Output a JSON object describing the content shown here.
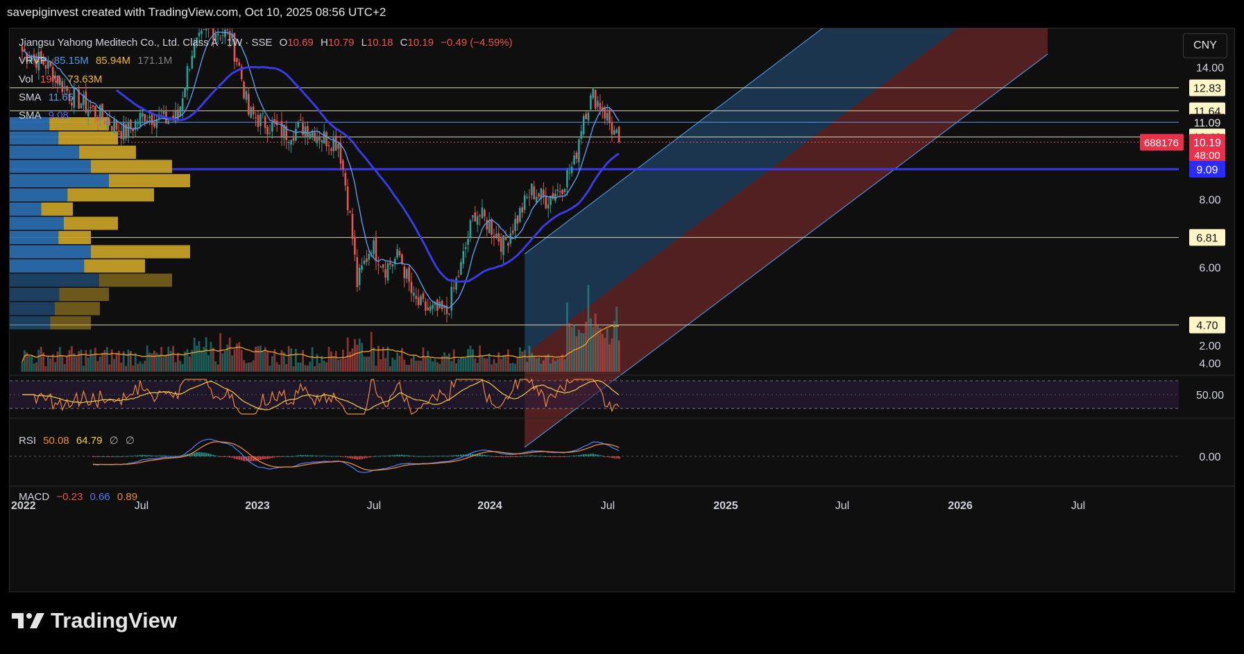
{
  "header": {
    "attribution": "savepiginvest created with TradingView.com, Oct 10, 2025 08:56 UTC+2"
  },
  "symbol": {
    "name": "Jiangsu Yahong Meditech Co., Ltd. Class A · 1W · SSE",
    "open_label": "O",
    "open": "10.69",
    "high_label": "H",
    "high": "10.79",
    "low_label": "L",
    "low": "10.18",
    "close_label": "C",
    "close": "10.19",
    "change": "−0.49 (−4.59%)"
  },
  "indicators": {
    "vrvp": {
      "label": "VRVP",
      "v1": "85.15M",
      "v2": "85.94M",
      "v3": "171.1M"
    },
    "vol": {
      "label": "Vol",
      "v1": "19M",
      "v2": "73.63M"
    },
    "sma1": {
      "label": "SMA",
      "value": "11.65"
    },
    "sma2": {
      "label": "SMA",
      "value": "9.08"
    },
    "rsi": {
      "label": "RSI",
      "v1": "50.08",
      "v2": "64.79",
      "v3": "∅",
      "v4": "∅"
    },
    "macd": {
      "label": "MACD",
      "v1": "−0.23",
      "v2": "0.66",
      "v3": "0.89"
    }
  },
  "currency_button": "CNY",
  "price_axis": {
    "ticks": [
      "14.00",
      "8.00",
      "6.00",
      "4.00",
      "2.00"
    ],
    "levels": [
      {
        "label": "12.83",
        "price": 12.83
      },
      {
        "label": "11.64",
        "price": 11.64
      },
      {
        "label": "11.09",
        "price": 11.09
      },
      {
        "label": "10.42",
        "price": 10.42
      },
      {
        "label": "6.81",
        "price": 6.81
      },
      {
        "label": "4.70",
        "price": 4.7
      }
    ],
    "current": {
      "symbol_code": "688176",
      "price": "10.19",
      "countdown": "48:00"
    },
    "sma_level": "9.09"
  },
  "rsi_axis": "50.00",
  "macd_axis": "0.00",
  "time_axis": [
    "2022",
    "Jul",
    "2023",
    "Jul",
    "2024",
    "Jul",
    "2025",
    "Jul",
    "2026",
    "Jul"
  ],
  "brand": "TradingView",
  "colors": {
    "up": "#26a69a",
    "down": "#ef5350",
    "sma_slow": "#3a3ae8",
    "sma_fast": "#5b9cf0",
    "vrvp_up": "#2a6db0",
    "vrvp_down": "#c9a227"
  },
  "chart_data": [
    {
      "type": "candlestick",
      "title": "Jiangsu Yahong Meditech Co., Ltd. Class A · 1W · SSE",
      "scale": "log",
      "ylim": [
        3.8,
        16.5
      ],
      "x_ticks": [
        "2022",
        "Jul",
        "2023",
        "Jul",
        "2024",
        "Jul",
        "2025",
        "Jul",
        "2026",
        "Jul"
      ],
      "close_path": [
        {
          "w": 0,
          "c": 15.0
        },
        {
          "w": 10,
          "c": 14.2
        },
        {
          "w": 20,
          "c": 12.5
        },
        {
          "w": 28,
          "c": 11.8
        },
        {
          "w": 36,
          "c": 11.2
        },
        {
          "w": 44,
          "c": 10.6
        },
        {
          "w": 52,
          "c": 11.5
        },
        {
          "w": 60,
          "c": 11.2
        },
        {
          "w": 66,
          "c": 11.3
        },
        {
          "w": 72,
          "c": 15.0
        },
        {
          "w": 80,
          "c": 16.5
        },
        {
          "w": 88,
          "c": 16.0
        },
        {
          "w": 92,
          "c": 14.0
        },
        {
          "w": 96,
          "c": 11.5
        },
        {
          "w": 104,
          "c": 11.0
        },
        {
          "w": 112,
          "c": 10.6
        },
        {
          "w": 120,
          "c": 10.9
        },
        {
          "w": 128,
          "c": 10.4
        },
        {
          "w": 134,
          "c": 10.2
        },
        {
          "w": 138,
          "c": 8.0
        },
        {
          "w": 142,
          "c": 5.6
        },
        {
          "w": 148,
          "c": 6.6
        },
        {
          "w": 154,
          "c": 6.0
        },
        {
          "w": 160,
          "c": 6.3
        },
        {
          "w": 166,
          "c": 5.2
        },
        {
          "w": 172,
          "c": 5.0
        },
        {
          "w": 180,
          "c": 4.95
        },
        {
          "w": 186,
          "c": 6.0
        },
        {
          "w": 192,
          "c": 7.6
        },
        {
          "w": 198,
          "c": 7.2
        },
        {
          "w": 204,
          "c": 6.6
        },
        {
          "w": 210,
          "c": 7.4
        },
        {
          "w": 216,
          "c": 8.3
        },
        {
          "w": 222,
          "c": 8.0
        },
        {
          "w": 228,
          "c": 8.4
        },
        {
          "w": 234,
          "c": 9.3
        },
        {
          "w": 238,
          "c": 11.5
        },
        {
          "w": 242,
          "c": 12.4
        },
        {
          "w": 246,
          "c": 11.8
        },
        {
          "w": 250,
          "c": 10.8
        },
        {
          "w": 253,
          "c": 10.19
        }
      ],
      "sma_fast_value": 11.65,
      "sma_slow_value": 9.08,
      "volume_label": "Vol",
      "rsi_last": 50.08,
      "macd_last": [
        -0.23,
        0.66,
        0.89
      ]
    }
  ]
}
